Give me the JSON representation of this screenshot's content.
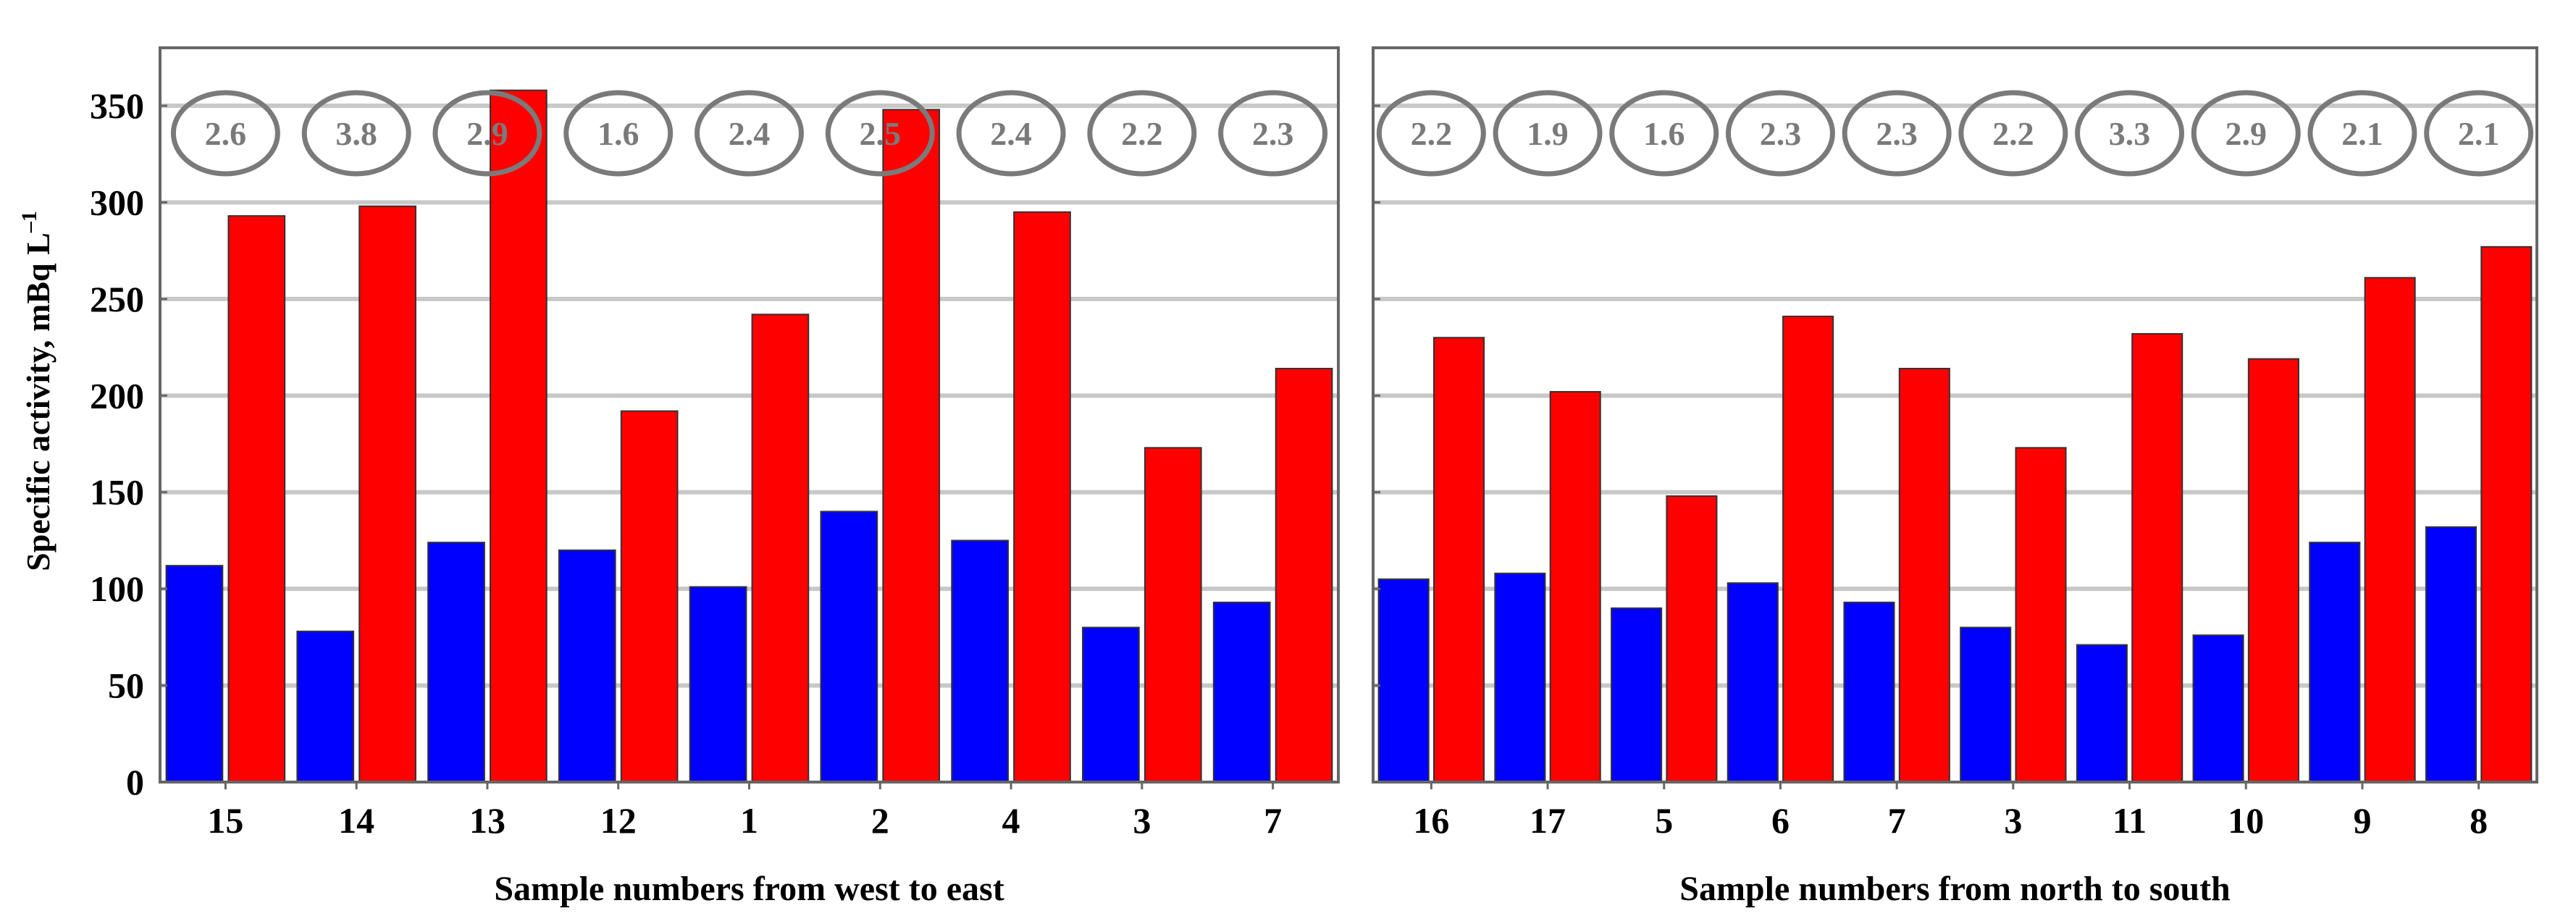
{
  "chart_data": {
    "type": "bar",
    "ylabel": "Specific activity, mBq L",
    "ylabel_superscript": "–1",
    "ylim": [
      0,
      380
    ],
    "yticks": [
      0,
      50,
      100,
      150,
      200,
      250,
      300,
      350
    ],
    "grid": true,
    "colors": {
      "series_a": "#0000ff",
      "series_b": "#ff0000",
      "grid": "#c8c8c8",
      "ellipse": "#7a7a7a",
      "axis": "#666666"
    },
    "panels": [
      {
        "xlabel": "Sample numbers from west to east",
        "categories": [
          "15",
          "14",
          "13",
          "12",
          "1",
          "2",
          "4",
          "3",
          "7"
        ],
        "series": [
          {
            "name": "blue",
            "values": [
              112,
              78,
              124,
              120,
              101,
              140,
              125,
              80,
              93
            ]
          },
          {
            "name": "red",
            "values": [
              293,
              298,
              358,
              192,
              242,
              348,
              295,
              173,
              214
            ]
          }
        ],
        "ratios": [
          "2.6",
          "3.8",
          "2.9",
          "1.6",
          "2.4",
          "2.5",
          "2.4",
          "2.2",
          "2.3"
        ]
      },
      {
        "xlabel": "Sample numbers from north to south",
        "categories": [
          "16",
          "17",
          "5",
          "6",
          "7",
          "3",
          "11",
          "10",
          "9",
          "8"
        ],
        "series": [
          {
            "name": "blue",
            "values": [
              105,
              108,
              90,
              103,
              93,
              80,
              71,
              76,
              124,
              132
            ]
          },
          {
            "name": "red",
            "values": [
              230,
              202,
              148,
              241,
              214,
              173,
              232,
              219,
              261,
              277
            ]
          }
        ],
        "ratios": [
          "2.2",
          "1.9",
          "1.6",
          "2.3",
          "2.3",
          "2.2",
          "3.3",
          "2.9",
          "2.1",
          "2.1"
        ]
      }
    ]
  }
}
